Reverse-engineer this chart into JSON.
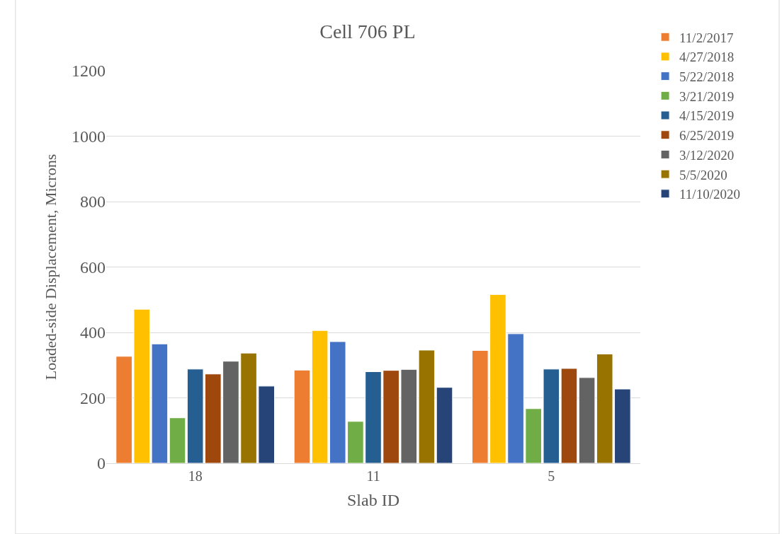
{
  "chart_data": {
    "type": "bar",
    "title": "Cell 706 PL",
    "xlabel": "Slab ID",
    "ylabel": "Loaded-side Displacement, Microns",
    "categories": [
      "18",
      "11",
      "5"
    ],
    "series": [
      {
        "name": "11/2/2017",
        "color": "#ed7d31",
        "values": [
          327,
          285,
          345
        ]
      },
      {
        "name": "4/27/2018",
        "color": "#ffc000",
        "values": [
          471,
          406,
          516
        ]
      },
      {
        "name": "5/22/2018",
        "color": "#4472c4",
        "values": [
          365,
          372,
          396
        ]
      },
      {
        "name": "3/21/2019",
        "color": "#70ad47",
        "values": [
          139,
          128,
          167
        ]
      },
      {
        "name": "4/15/2019",
        "color": "#255e91",
        "values": [
          288,
          280,
          288
        ]
      },
      {
        "name": "6/25/2019",
        "color": "#9e480e",
        "values": [
          273,
          284,
          290
        ]
      },
      {
        "name": "3/12/2020",
        "color": "#636363",
        "values": [
          312,
          287,
          262
        ]
      },
      {
        "name": "5/5/2020",
        "color": "#997300",
        "values": [
          337,
          346,
          334
        ]
      },
      {
        "name": "11/10/2020",
        "color": "#264478",
        "values": [
          236,
          232,
          227
        ]
      }
    ],
    "ylim": [
      0,
      1200
    ],
    "yticks": [
      0,
      200,
      400,
      600,
      800,
      1000,
      1200
    ],
    "grid": "y",
    "legend": "right"
  }
}
